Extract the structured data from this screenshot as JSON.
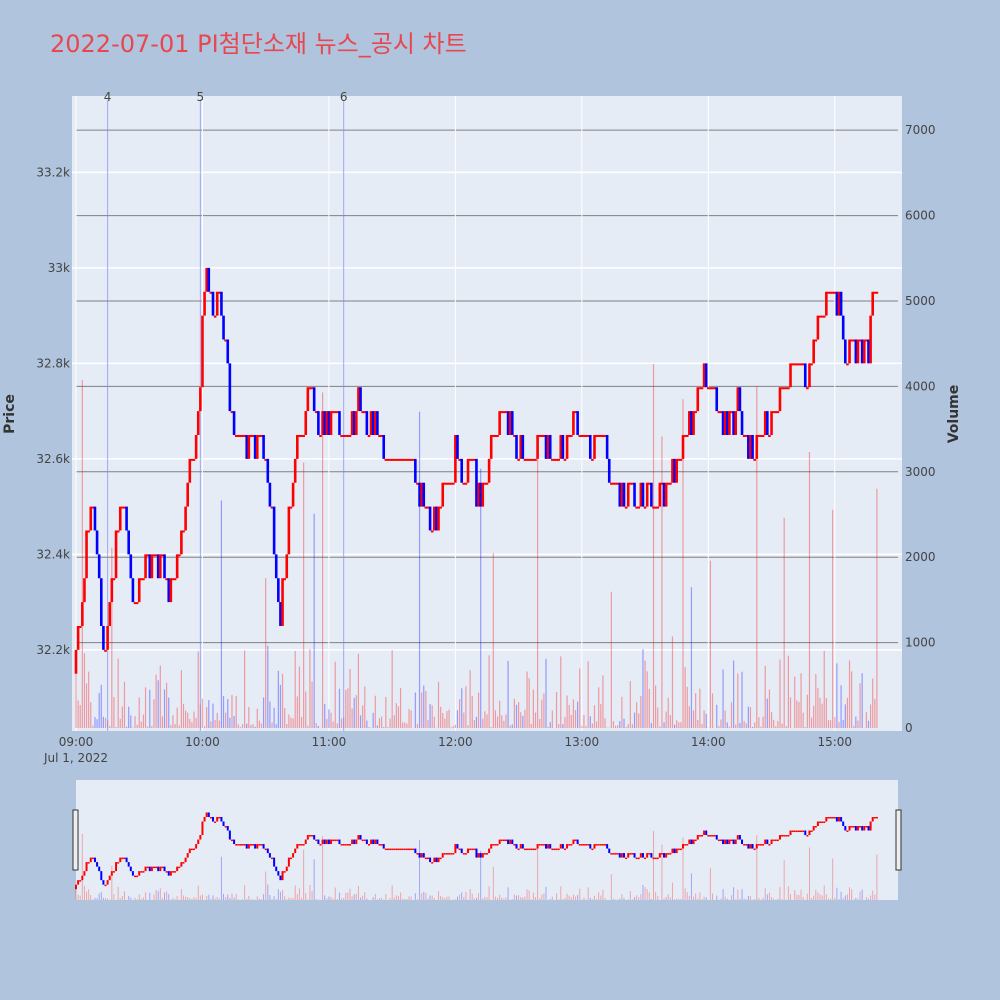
{
  "chart_data": {
    "type": "candlestick",
    "title": "2022-07-01 PI첨단소재 뉴스_공시 차트",
    "ylabel": "Price",
    "y2label": "Volume",
    "ylim": [
      32030,
      33360
    ],
    "volume_lim": [
      0,
      7400
    ],
    "x_range": [
      "09:00",
      "15:30"
    ],
    "date_label": "Jul 1, 2022",
    "x_ticks": [
      "09:00",
      "10:00",
      "11:00",
      "12:00",
      "13:00",
      "14:00",
      "15:00"
    ],
    "y_ticks": [
      {
        "value": 32200,
        "label": "32.2k"
      },
      {
        "value": 32400,
        "label": "32.4k"
      },
      {
        "value": 32600,
        "label": "32.6k"
      },
      {
        "value": 32800,
        "label": "32.8k"
      },
      {
        "value": 33000,
        "label": "33k"
      },
      {
        "value": 33200,
        "label": "33.2k"
      }
    ],
    "volume_ticks": [
      0,
      1000,
      2000,
      3000,
      4000,
      5000,
      6000,
      7000
    ],
    "colors": {
      "up": "#ff0000",
      "down": "#0000ff",
      "title": "#e8474f",
      "plot_bg": "#e5ecf6",
      "page_bg": "#b0c4de"
    },
    "news_markers": [
      {
        "label": "4",
        "time": "09:15"
      },
      {
        "label": "5",
        "time": "09:59"
      },
      {
        "label": "6",
        "time": "11:07"
      }
    ],
    "price_path": [
      [
        "09:00",
        32200
      ],
      [
        "09:03",
        32300
      ],
      [
        "09:05",
        32420
      ],
      [
        "09:07",
        32500
      ],
      [
        "09:09",
        32460
      ],
      [
        "09:11",
        32320
      ],
      [
        "09:13",
        32180
      ],
      [
        "09:15",
        32240
      ],
      [
        "09:18",
        32380
      ],
      [
        "09:20",
        32460
      ],
      [
        "09:22",
        32550
      ],
      [
        "09:24",
        32450
      ],
      [
        "09:26",
        32330
      ],
      [
        "09:28",
        32270
      ],
      [
        "09:30",
        32330
      ],
      [
        "09:33",
        32400
      ],
      [
        "09:36",
        32370
      ],
      [
        "09:40",
        32380
      ],
      [
        "09:43",
        32320
      ],
      [
        "09:47",
        32350
      ],
      [
        "09:50",
        32420
      ],
      [
        "09:52",
        32520
      ],
      [
        "09:54",
        32600
      ],
      [
        "09:56",
        32580
      ],
      [
        "09:58",
        32700
      ],
      [
        "10:00",
        32870
      ],
      [
        "10:02",
        33000
      ],
      [
        "10:04",
        32950
      ],
      [
        "10:06",
        32900
      ],
      [
        "10:08",
        32960
      ],
      [
        "10:10",
        32870
      ],
      [
        "10:12",
        32780
      ],
      [
        "10:14",
        32700
      ],
      [
        "10:16",
        32640
      ],
      [
        "10:20",
        32650
      ],
      [
        "10:24",
        32620
      ],
      [
        "10:28",
        32640
      ],
      [
        "10:31",
        32550
      ],
      [
        "10:33",
        32480
      ],
      [
        "10:35",
        32340
      ],
      [
        "10:37",
        32270
      ],
      [
        "10:39",
        32370
      ],
      [
        "10:41",
        32480
      ],
      [
        "10:43",
        32560
      ],
      [
        "10:45",
        32640
      ],
      [
        "10:48",
        32700
      ],
      [
        "10:52",
        32720
      ],
      [
        "10:56",
        32660
      ],
      [
        "11:00",
        32700
      ],
      [
        "11:05",
        32680
      ],
      [
        "11:10",
        32660
      ],
      [
        "11:14",
        32720
      ],
      [
        "11:18",
        32640
      ],
      [
        "11:22",
        32680
      ],
      [
        "11:26",
        32620
      ],
      [
        "11:30",
        32560
      ],
      [
        "11:34",
        32600
      ],
      [
        "11:38",
        32620
      ],
      [
        "11:42",
        32560
      ],
      [
        "11:45",
        32520
      ],
      [
        "11:48",
        32460
      ],
      [
        "11:52",
        32500
      ],
      [
        "11:56",
        32560
      ],
      [
        "12:00",
        32600
      ],
      [
        "12:04",
        32560
      ],
      [
        "12:08",
        32580
      ],
      [
        "12:12",
        32520
      ],
      [
        "12:16",
        32600
      ],
      [
        "12:20",
        32650
      ],
      [
        "12:24",
        32700
      ],
      [
        "12:28",
        32640
      ],
      [
        "12:32",
        32620
      ],
      [
        "12:36",
        32580
      ],
      [
        "12:40",
        32640
      ],
      [
        "12:44",
        32620
      ],
      [
        "12:48",
        32600
      ],
      [
        "12:52",
        32640
      ],
      [
        "12:56",
        32700
      ],
      [
        "13:00",
        32640
      ],
      [
        "13:04",
        32600
      ],
      [
        "13:08",
        32640
      ],
      [
        "13:12",
        32620
      ],
      [
        "13:15",
        32520
      ],
      [
        "13:20",
        32530
      ],
      [
        "13:25",
        32520
      ],
      [
        "13:30",
        32540
      ],
      [
        "13:35",
        32510
      ],
      [
        "13:40",
        32540
      ],
      [
        "13:44",
        32600
      ],
      [
        "13:48",
        32640
      ],
      [
        "13:52",
        32660
      ],
      [
        "13:55",
        32740
      ],
      [
        "13:58",
        32800
      ],
      [
        "14:02",
        32740
      ],
      [
        "14:06",
        32700
      ],
      [
        "14:10",
        32680
      ],
      [
        "14:14",
        32720
      ],
      [
        "14:18",
        32640
      ],
      [
        "14:22",
        32620
      ],
      [
        "14:26",
        32680
      ],
      [
        "14:30",
        32700
      ],
      [
        "14:34",
        32720
      ],
      [
        "14:38",
        32780
      ],
      [
        "14:42",
        32800
      ],
      [
        "14:46",
        32760
      ],
      [
        "14:50",
        32850
      ],
      [
        "14:54",
        32900
      ],
      [
        "14:58",
        32960
      ],
      [
        "15:02",
        32920
      ],
      [
        "15:05",
        32800
      ],
      [
        "15:08",
        32850
      ],
      [
        "15:12",
        32820
      ],
      [
        "15:16",
        32840
      ],
      [
        "15:19",
        32950
      ],
      [
        "15:20",
        33000
      ]
    ]
  }
}
